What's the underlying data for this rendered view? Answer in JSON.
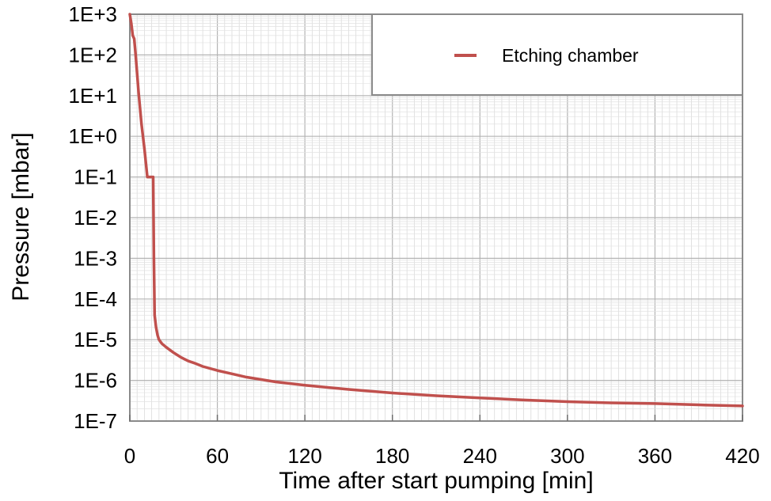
{
  "chart_data": {
    "type": "line",
    "title": "",
    "xlabel": "Time after start pumping [min]",
    "ylabel": "Pressure [mbar]",
    "xlim": [
      0,
      420
    ],
    "ylim": [
      1e-07,
      1000
    ],
    "yscale": "log",
    "x_ticks": [
      0,
      60,
      120,
      180,
      240,
      300,
      360,
      420
    ],
    "x_tick_labels": [
      "0",
      "60",
      "120",
      "180",
      "240",
      "300",
      "360",
      "420"
    ],
    "y_ticks": [
      1e-07,
      1e-06,
      1e-05,
      0.0001,
      0.001,
      0.01,
      0.1,
      1,
      10,
      100,
      1000
    ],
    "y_tick_labels": [
      "1E-7",
      "1E-6",
      "1E-5",
      "1E-4",
      "1E-3",
      "1E-2",
      "1E-1",
      "1E+0",
      "1E+1",
      "1E+2",
      "1E+3"
    ],
    "grid": true,
    "legend_position": "top-right",
    "series": [
      {
        "name": "Etching chamber",
        "color": "#c0504d",
        "x": [
          0,
          1,
          2,
          3,
          4,
          6,
          8,
          10,
          12,
          13,
          15,
          16,
          16.5,
          17,
          18,
          19,
          20,
          22,
          25,
          30,
          35,
          40,
          45,
          50,
          60,
          70,
          80,
          90,
          100,
          120,
          150,
          180,
          210,
          240,
          270,
          300,
          330,
          360,
          390,
          420
        ],
        "y": [
          1000,
          600,
          300,
          250,
          100,
          12,
          2,
          0.5,
          0.1,
          0.1,
          0.1,
          0.1,
          0.001,
          4e-05,
          2e-05,
          1.3e-05,
          1e-05,
          8e-06,
          6.5e-06,
          4.8e-06,
          3.7e-06,
          3e-06,
          2.6e-06,
          2.2e-06,
          1.75e-06,
          1.45e-06,
          1.2e-06,
          1.05e-06,
          9.2e-07,
          7.6e-07,
          6e-07,
          4.9e-07,
          4.2e-07,
          3.7e-07,
          3.3e-07,
          3e-07,
          2.8e-07,
          2.7e-07,
          2.5e-07,
          2.35e-07
        ]
      }
    ]
  }
}
